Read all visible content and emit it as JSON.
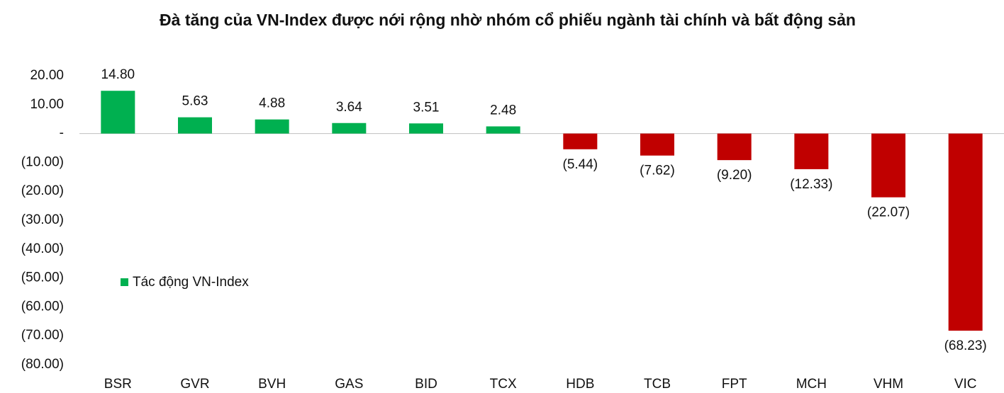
{
  "chart_data": {
    "type": "bar",
    "title": "Đà tăng của VN-Index được nới rộng nhờ nhóm cổ phiếu ngành tài chính và bất động sản",
    "categories": [
      "BSR",
      "GVR",
      "BVH",
      "GAS",
      "BID",
      "TCX",
      "HDB",
      "TCB",
      "FPT",
      "MCH",
      "VHM",
      "VIC"
    ],
    "series": [
      {
        "name": "Tác động VN-Index",
        "color": "#00b050",
        "negative_color": "#c00000",
        "values": [
          14.8,
          5.63,
          4.88,
          3.64,
          3.51,
          2.48,
          -5.44,
          -7.62,
          -9.2,
          -12.33,
          -22.07,
          -68.23
        ],
        "value_labels": [
          "14.80",
          "5.63",
          "4.88",
          "3.64",
          "3.51",
          "2.48",
          "(5.44)",
          "(7.62)",
          "(9.20)",
          "(12.33)",
          "(22.07)",
          "(68.23)"
        ]
      }
    ],
    "ylim": [
      -80,
      20
    ],
    "yticks": [
      {
        "value": 20,
        "label": "20.00"
      },
      {
        "value": 10,
        "label": "10.00"
      },
      {
        "value": 0,
        "label": "-"
      },
      {
        "value": -10,
        "label": "(10.00)"
      },
      {
        "value": -20,
        "label": "(20.00)"
      },
      {
        "value": -30,
        "label": "(30.00)"
      },
      {
        "value": -40,
        "label": "(40.00)"
      },
      {
        "value": -50,
        "label": "(50.00)"
      },
      {
        "value": -60,
        "label": "(60.00)"
      },
      {
        "value": -70,
        "label": "(70.00)"
      },
      {
        "value": -80,
        "label": "(80.00)"
      }
    ],
    "grid": false
  }
}
